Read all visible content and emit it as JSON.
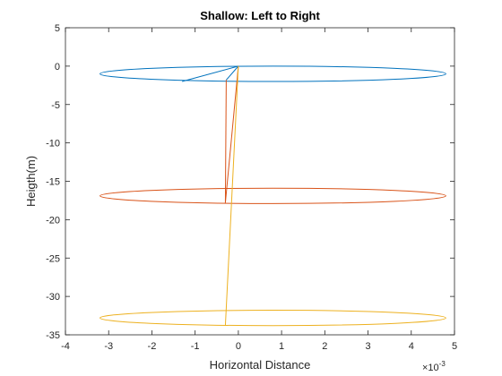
{
  "chart_data": {
    "type": "line",
    "title": "Shallow: Left to Right",
    "xlabel": "Horizontal Distance",
    "ylabel": "Heigth(m)",
    "x_multiplier_label": "×10",
    "x_multiplier_exponent": "-3",
    "xlim": [
      -4,
      5
    ],
    "ylim": [
      -35,
      5
    ],
    "xticks": [
      -4,
      -3,
      -2,
      -1,
      0,
      1,
      2,
      3,
      4,
      5
    ],
    "yticks": [
      5,
      0,
      -5,
      -10,
      -15,
      -20,
      -25,
      -30,
      -35
    ],
    "grid": false,
    "colors": [
      "#0072BD",
      "#D95319",
      "#EDB120"
    ],
    "series": [
      {
        "ellipse": {
          "cx": 0.8,
          "cy": -1.0,
          "rx": 4.0,
          "ry": 1.0
        },
        "lines": [
          [
            [
              0.0,
              0.0
            ],
            [
              -1.3,
              -2.0
            ]
          ],
          [
            [
              0.0,
              0.0
            ],
            [
              -0.28,
              -1.8
            ]
          ]
        ]
      },
      {
        "ellipse": {
          "cx": 0.8,
          "cy": -16.9,
          "rx": 4.0,
          "ry": 1.0
        },
        "lines": [
          [
            [
              0.0,
              0.0
            ],
            [
              -0.3,
              -17.8
            ]
          ],
          [
            [
              -0.3,
              -17.8
            ],
            [
              -0.28,
              -1.8
            ]
          ]
        ]
      },
      {
        "ellipse": {
          "cx": 0.8,
          "cy": -32.8,
          "rx": 4.0,
          "ry": 1.0
        },
        "lines": [
          [
            [
              0.0,
              0.0
            ],
            [
              -0.3,
              -33.8
            ]
          ]
        ]
      }
    ]
  }
}
